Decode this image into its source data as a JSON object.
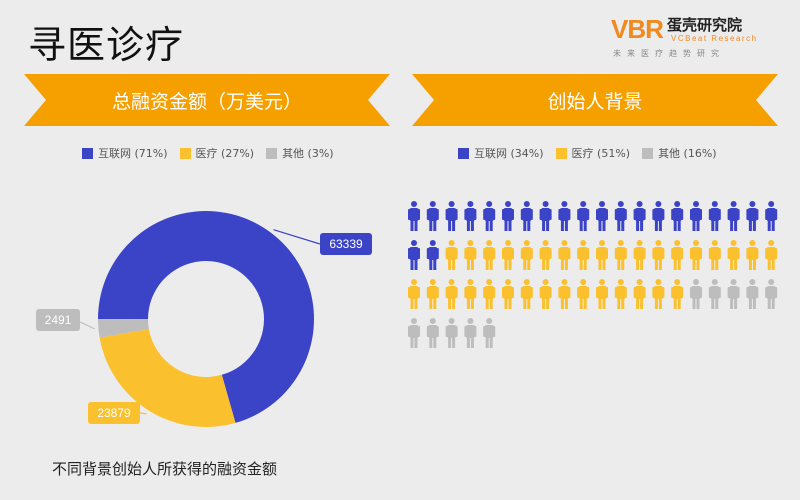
{
  "page": {
    "title": "寻医诊疗"
  },
  "logo": {
    "mark": "VBR",
    "name_cn": "蛋壳研究院",
    "name_en": "VCBeat Research",
    "sub": "未来医疗趋势研究"
  },
  "colors": {
    "internet": "#3b43c6",
    "medical": "#fbc02d",
    "other": "#bdbdbd",
    "banner": "#f6a000"
  },
  "left_banner": {
    "label": "总融资金额（万美元）"
  },
  "right_banner": {
    "label": "创始人背景"
  },
  "left_legend": [
    {
      "label": "互联网 (71%)",
      "color": "#3b43c6"
    },
    {
      "label": "医疗 (27%)",
      "color": "#fbc02d"
    },
    {
      "label": "其他 (3%)",
      "color": "#bdbdbd"
    }
  ],
  "right_legend": [
    {
      "label": "互联网 (34%)",
      "color": "#3b43c6"
    },
    {
      "label": "医疗 (51%)",
      "color": "#fbc02d"
    },
    {
      "label": "其他 (16%)",
      "color": "#bdbdbd"
    }
  ],
  "caption": "不同背景创始人所获得的融资金额",
  "chart_data": [
    {
      "type": "pie",
      "title": "总融资金额（万美元）",
      "categories": [
        "互联网",
        "医疗",
        "其他"
      ],
      "values": [
        63339,
        23879,
        2491
      ],
      "value_labels": [
        "63339",
        "23879",
        "2491"
      ],
      "colors": [
        "#3b43c6",
        "#fbc02d",
        "#bdbdbd"
      ],
      "donut": true,
      "legend": "top"
    },
    {
      "type": "bar",
      "title": "创始人背景",
      "categories": [
        "互联网",
        "医疗",
        "其他"
      ],
      "values": [
        22,
        33,
        10
      ],
      "colors": [
        "#3b43c6",
        "#fbc02d",
        "#bdbdbd"
      ],
      "legend": "top"
    }
  ]
}
